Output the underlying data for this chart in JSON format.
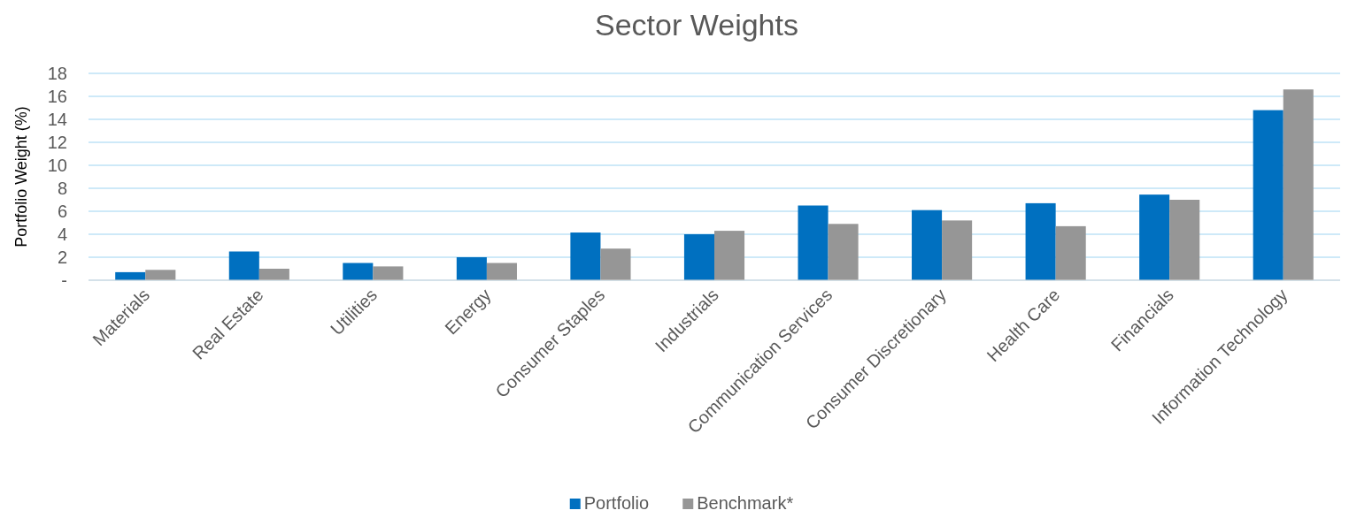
{
  "chart_data": {
    "type": "bar",
    "title": "Sector Weights",
    "ylabel": "Portfolio Weight (%)",
    "categories": [
      "Materials",
      "Real Estate",
      "Utilities",
      "Energy",
      "Consumer Staples",
      "Industrials",
      "Communication Services",
      "Consumer Discretionary",
      "Health Care",
      "Financials",
      "Information Technology"
    ],
    "series": [
      {
        "name": "Portfolio",
        "color": "#0070c0",
        "values": [
          0.7,
          2.5,
          1.5,
          2.0,
          4.15,
          4.0,
          6.5,
          6.1,
          6.7,
          7.45,
          14.8
        ]
      },
      {
        "name": "Benchmark*",
        "color": "#969696",
        "values": [
          0.9,
          1.0,
          1.2,
          1.5,
          2.75,
          4.3,
          4.9,
          5.2,
          4.7,
          7.0,
          16.6
        ]
      }
    ],
    "ylim": [
      0,
      18
    ],
    "yticks": [
      {
        "value": 0,
        "label": "-"
      },
      2,
      4,
      6,
      8,
      10,
      12,
      14,
      16,
      18
    ],
    "grid": "y",
    "legend": "bottom"
  }
}
